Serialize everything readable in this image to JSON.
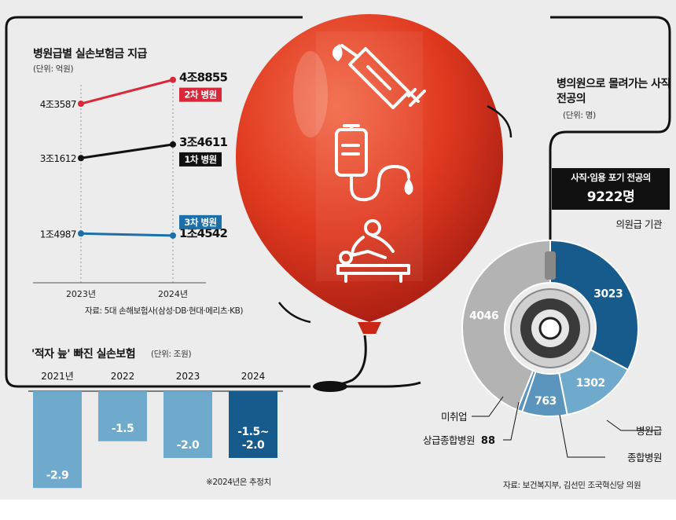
{
  "colors": {
    "background": "#ececec",
    "line_tier2": "#d8283a",
    "line_tier1": "#111111",
    "line_tier3": "#1c6fa8",
    "bar_fill": "#6fa9cb",
    "bar_fill_estimate": "#175b8c",
    "donut_clinic": "#175b8c",
    "donut_hospital": "#6fa9cb",
    "donut_general": "#5b95bd",
    "donut_unemployed": "#b3b3b3",
    "balloon": "#e0391f"
  },
  "icons": [
    "syringe-icon",
    "iv-drip-icon",
    "massage-therapy-icon",
    "stethoscope-icon"
  ],
  "chart_data": [
    {
      "type": "line",
      "title": "병원급별 실손보험금 지급",
      "unit": "(단위: 억원)",
      "x": [
        "2023년",
        "2024년"
      ],
      "ylim": [
        0,
        50000
      ],
      "series": [
        {
          "name": "2차 병원",
          "values": [
            43587,
            48855
          ],
          "labels": [
            "4조3587",
            "4조8855"
          ]
        },
        {
          "name": "1차 병원",
          "values": [
            31612,
            34611
          ],
          "labels": [
            "3조1612",
            "3조4611"
          ]
        },
        {
          "name": "3차 병원",
          "values": [
            14987,
            14542
          ],
          "labels": [
            "1조4987",
            "1조4542"
          ]
        }
      ],
      "source": "자료: 5대 손해보험사(삼성·DB·현대·메리츠·KB)"
    },
    {
      "type": "bar",
      "title": "'적자 늪' 빠진 실손보험",
      "unit": "(단위: 조원)",
      "categories": [
        "2021년",
        "2022",
        "2023",
        "2024"
      ],
      "values": [
        -2.9,
        -1.5,
        -2.0,
        -1.75
      ],
      "value_labels": [
        "-2.9",
        "-1.5",
        "-2.0",
        "-1.5~\n-2.0"
      ],
      "estimate_range_2024": [
        -1.5,
        -2.0
      ],
      "ylim": [
        -3,
        0
      ],
      "note": "※2024년은 추정치"
    },
    {
      "type": "pie",
      "title": "병의원으로 몰려가는 사직 전공의",
      "unit": "(단위: 명)",
      "center_label": "사직·임용 포기 전공의",
      "total": "9222명",
      "slices": [
        {
          "label": "의원급 기관",
          "value": 3023
        },
        {
          "label": "병원급",
          "value": 1302
        },
        {
          "label": "종합병원",
          "value": 763
        },
        {
          "label": "상급종합병원",
          "value": 88
        },
        {
          "label": "미취업",
          "value": 4046
        }
      ],
      "source": "자료: 보건복지부, 김선민 조국혁신당 의원"
    }
  ]
}
